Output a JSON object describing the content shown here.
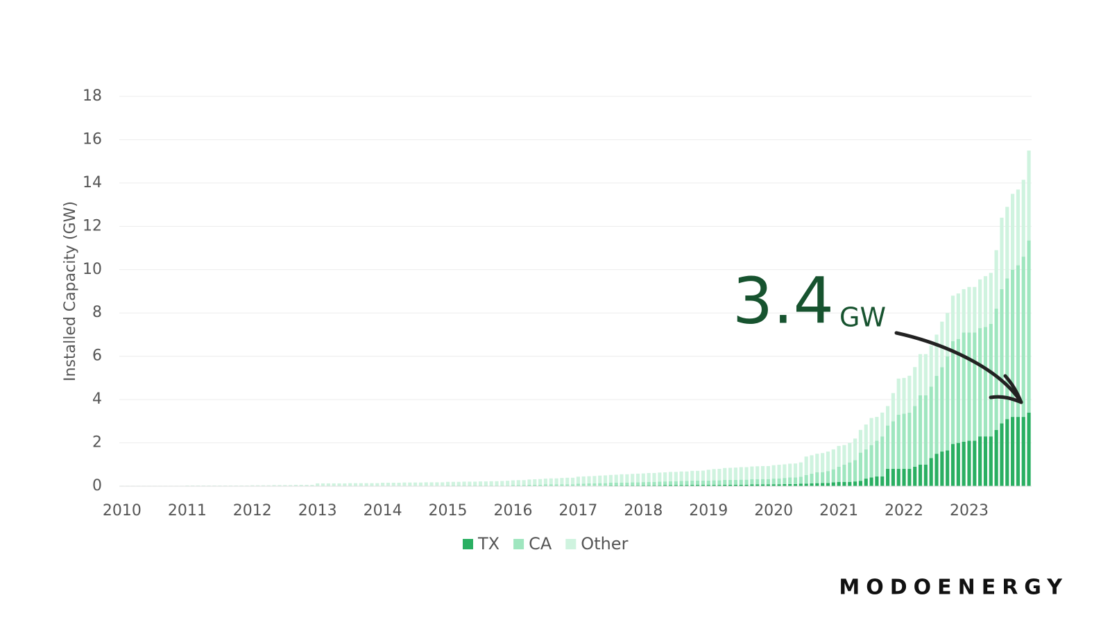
{
  "chart_data": {
    "type": "stacked_bar",
    "y_label": "Installed Capacity (GW)",
    "annotation": {
      "value": 3.4,
      "unit": "GW"
    },
    "brand": "MODOENERGY",
    "ylim": [
      0,
      18
    ],
    "yticks": [
      0,
      2,
      4,
      6,
      8,
      10,
      12,
      14,
      16,
      18
    ],
    "grid": true,
    "legend": "bottom",
    "categories": [
      "2010",
      null,
      null,
      null,
      null,
      null,
      null,
      null,
      null,
      null,
      null,
      null,
      "2011",
      null,
      null,
      null,
      null,
      null,
      null,
      null,
      null,
      null,
      null,
      null,
      "2012",
      null,
      null,
      null,
      null,
      null,
      null,
      null,
      null,
      null,
      null,
      null,
      "2013",
      null,
      null,
      null,
      null,
      null,
      null,
      null,
      null,
      null,
      null,
      null,
      "2014",
      null,
      null,
      null,
      null,
      null,
      null,
      null,
      null,
      null,
      null,
      null,
      "2015",
      null,
      null,
      null,
      null,
      null,
      null,
      null,
      null,
      null,
      null,
      null,
      "2016",
      null,
      null,
      null,
      null,
      null,
      null,
      null,
      null,
      null,
      null,
      null,
      "2017",
      null,
      null,
      null,
      null,
      null,
      null,
      null,
      null,
      null,
      null,
      null,
      "2018",
      null,
      null,
      null,
      null,
      null,
      null,
      null,
      null,
      null,
      null,
      null,
      "2019",
      null,
      null,
      null,
      null,
      null,
      null,
      null,
      null,
      null,
      null,
      null,
      "2020",
      null,
      null,
      null,
      null,
      null,
      null,
      null,
      null,
      null,
      null,
      null,
      "2021",
      null,
      null,
      null,
      null,
      null,
      null,
      null,
      null,
      null,
      null,
      null,
      "2022",
      null,
      null,
      null,
      null,
      null,
      null,
      null,
      null,
      null,
      null,
      null,
      "2023",
      null,
      null,
      null,
      null,
      null,
      null,
      null,
      null,
      null,
      null,
      null
    ],
    "series": [
      {
        "name": "TX",
        "color": "#2aaf62",
        "values": [
          0,
          0,
          0,
          0,
          0,
          0,
          0,
          0,
          0,
          0,
          0,
          0,
          0,
          0,
          0,
          0,
          0,
          0,
          0,
          0,
          0,
          0,
          0,
          0,
          0,
          0,
          0,
          0,
          0,
          0,
          0,
          0,
          0,
          0,
          0,
          0,
          0,
          0,
          0,
          0,
          0,
          0,
          0,
          0,
          0,
          0,
          0,
          0,
          0,
          0,
          0,
          0,
          0,
          0,
          0,
          0,
          0,
          0,
          0,
          0,
          0,
          0,
          0,
          0,
          0,
          0,
          0,
          0,
          0,
          0,
          0,
          0,
          0,
          0,
          0,
          0.01,
          0.01,
          0.01,
          0.01,
          0.01,
          0.01,
          0.01,
          0.01,
          0.01,
          0.02,
          0.02,
          0.02,
          0.02,
          0.02,
          0.02,
          0.03,
          0.03,
          0.03,
          0.03,
          0.03,
          0.03,
          0.04,
          0.04,
          0.04,
          0.04,
          0.05,
          0.05,
          0.05,
          0.05,
          0.05,
          0.06,
          0.06,
          0.06,
          0.06,
          0.06,
          0.06,
          0.07,
          0.07,
          0.07,
          0.07,
          0.07,
          0.08,
          0.08,
          0.08,
          0.08,
          0.09,
          0.09,
          0.1,
          0.1,
          0.1,
          0.12,
          0.12,
          0.13,
          0.14,
          0.15,
          0.15,
          0.18,
          0.2,
          0.2,
          0.2,
          0.22,
          0.25,
          0.35,
          0.4,
          0.45,
          0.45,
          0.8,
          0.8,
          0.8,
          0.8,
          0.8,
          0.9,
          1.0,
          1.0,
          1.3,
          1.5,
          1.6,
          1.65,
          1.95,
          2.0,
          2.05,
          2.1,
          2.1,
          2.3,
          2.3,
          2.3,
          2.6,
          2.9,
          3.1,
          3.2,
          3.2,
          3.2,
          3.4
        ]
      },
      {
        "name": "CA",
        "color": "#9fe6bf",
        "values": [
          0,
          0,
          0,
          0,
          0,
          0,
          0,
          0,
          0,
          0,
          0,
          0,
          0,
          0,
          0,
          0,
          0,
          0,
          0,
          0,
          0,
          0,
          0,
          0,
          0,
          0,
          0,
          0,
          0,
          0,
          0,
          0,
          0,
          0,
          0,
          0,
          0.01,
          0.01,
          0.01,
          0.01,
          0.01,
          0.01,
          0.01,
          0.01,
          0.01,
          0.01,
          0.01,
          0.01,
          0.02,
          0.02,
          0.02,
          0.02,
          0.02,
          0.02,
          0.02,
          0.02,
          0.02,
          0.02,
          0.02,
          0.02,
          0.03,
          0.03,
          0.03,
          0.03,
          0.03,
          0.03,
          0.03,
          0.03,
          0.03,
          0.03,
          0.03,
          0.03,
          0.05,
          0.05,
          0.05,
          0.06,
          0.06,
          0.06,
          0.07,
          0.07,
          0.07,
          0.08,
          0.08,
          0.08,
          0.1,
          0.1,
          0.11,
          0.11,
          0.12,
          0.12,
          0.13,
          0.13,
          0.14,
          0.14,
          0.15,
          0.15,
          0.15,
          0.16,
          0.16,
          0.17,
          0.17,
          0.18,
          0.18,
          0.19,
          0.19,
          0.2,
          0.2,
          0.2,
          0.2,
          0.21,
          0.21,
          0.22,
          0.22,
          0.22,
          0.23,
          0.23,
          0.24,
          0.24,
          0.25,
          0.25,
          0.26,
          0.27,
          0.28,
          0.3,
          0.3,
          0.32,
          0.4,
          0.45,
          0.5,
          0.5,
          0.55,
          0.6,
          0.7,
          0.8,
          0.9,
          0.98,
          1.3,
          1.35,
          1.5,
          1.65,
          1.85,
          2.0,
          2.2,
          2.5,
          2.55,
          2.6,
          2.8,
          3.2,
          3.2,
          3.3,
          3.6,
          3.9,
          4.35,
          4.75,
          4.8,
          5.05,
          5.0,
          5.0,
          5.0,
          5.05,
          5.2,
          5.6,
          6.2,
          6.5,
          6.8,
          7.0,
          7.4,
          7.95
        ]
      },
      {
        "name": "Other",
        "color": "#cff3df",
        "values": [
          0.02,
          0.02,
          0.02,
          0.02,
          0.02,
          0.02,
          0.02,
          0.02,
          0.02,
          0.02,
          0.02,
          0.02,
          0.03,
          0.03,
          0.03,
          0.03,
          0.03,
          0.03,
          0.03,
          0.03,
          0.03,
          0.03,
          0.03,
          0.03,
          0.04,
          0.04,
          0.04,
          0.04,
          0.05,
          0.05,
          0.05,
          0.05,
          0.06,
          0.06,
          0.06,
          0.06,
          0.12,
          0.12,
          0.12,
          0.12,
          0.12,
          0.12,
          0.13,
          0.13,
          0.13,
          0.13,
          0.13,
          0.13,
          0.14,
          0.14,
          0.14,
          0.14,
          0.15,
          0.15,
          0.15,
          0.15,
          0.16,
          0.16,
          0.16,
          0.16,
          0.17,
          0.17,
          0.17,
          0.18,
          0.18,
          0.18,
          0.19,
          0.19,
          0.2,
          0.2,
          0.21,
          0.22,
          0.22,
          0.23,
          0.23,
          0.24,
          0.25,
          0.26,
          0.27,
          0.28,
          0.28,
          0.29,
          0.3,
          0.3,
          0.32,
          0.33,
          0.33,
          0.34,
          0.35,
          0.36,
          0.36,
          0.37,
          0.38,
          0.38,
          0.39,
          0.4,
          0.4,
          0.41,
          0.41,
          0.42,
          0.42,
          0.43,
          0.43,
          0.44,
          0.44,
          0.45,
          0.45,
          0.46,
          0.5,
          0.52,
          0.53,
          0.55,
          0.56,
          0.57,
          0.58,
          0.58,
          0.59,
          0.6,
          0.6,
          0.6,
          0.62,
          0.63,
          0.63,
          0.64,
          0.65,
          0.66,
          0.85,
          0.85,
          0.86,
          0.88,
          0.9,
          0.92,
          0.96,
          0.9,
          0.9,
          1.0,
          1.05,
          1.15,
          1.25,
          1.1,
          1.1,
          0.9,
          1.3,
          1.67,
          1.65,
          1.7,
          1.8,
          1.9,
          1.9,
          1.9,
          1.9,
          2.1,
          2.0,
          2.1,
          2.1,
          2.0,
          2.1,
          2.1,
          2.25,
          2.35,
          2.35,
          2.7,
          3.3,
          3.3,
          3.5,
          3.5,
          3.55,
          4.15
        ]
      }
    ]
  }
}
